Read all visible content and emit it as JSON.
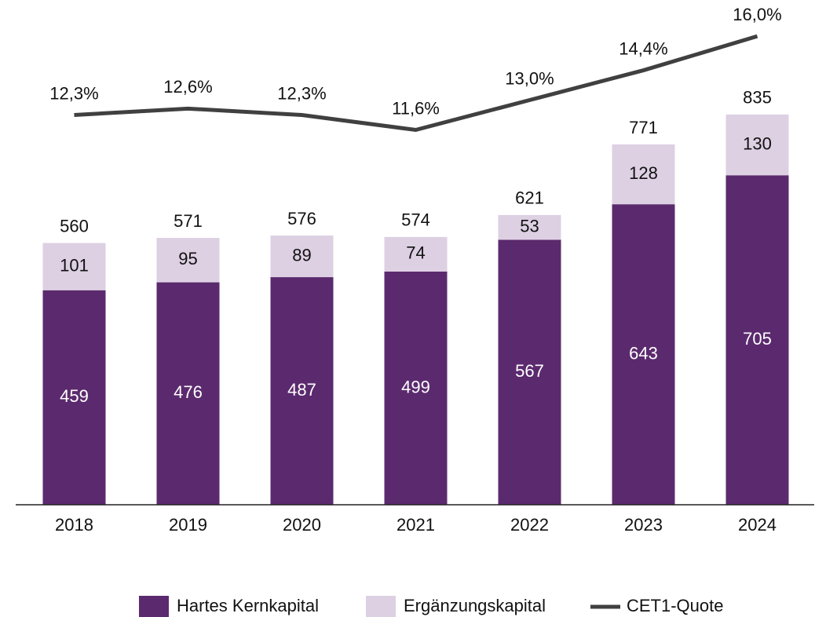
{
  "chart_data": {
    "type": "bar",
    "stacked": true,
    "categories": [
      "2018",
      "2019",
      "2020",
      "2021",
      "2022",
      "2023",
      "2024"
    ],
    "series": [
      {
        "name": "Hartes Kernkapital",
        "color": "#5b2a6e",
        "values": [
          459,
          476,
          487,
          499,
          567,
          643,
          705
        ]
      },
      {
        "name": "Ergänzungskapital",
        "color": "#ddd0e3",
        "values": [
          101,
          95,
          89,
          74,
          53,
          128,
          130
        ]
      },
      {
        "name": "CET1-Quote",
        "type": "line",
        "axis": "y2",
        "color": "#404040",
        "values": [
          12.3,
          12.6,
          12.3,
          11.6,
          13.0,
          14.4,
          16.0
        ],
        "value_labels": [
          "12,3%",
          "12,6%",
          "12,3%",
          "11,6%",
          "13,0%",
          "14,4%",
          "16,0%"
        ]
      }
    ],
    "totals": [
      560,
      571,
      576,
      574,
      621,
      771,
      835
    ],
    "ylim": [
      0,
      1080
    ],
    "y2lim": [
      -6,
      17.7
    ],
    "legend": "bottom"
  }
}
